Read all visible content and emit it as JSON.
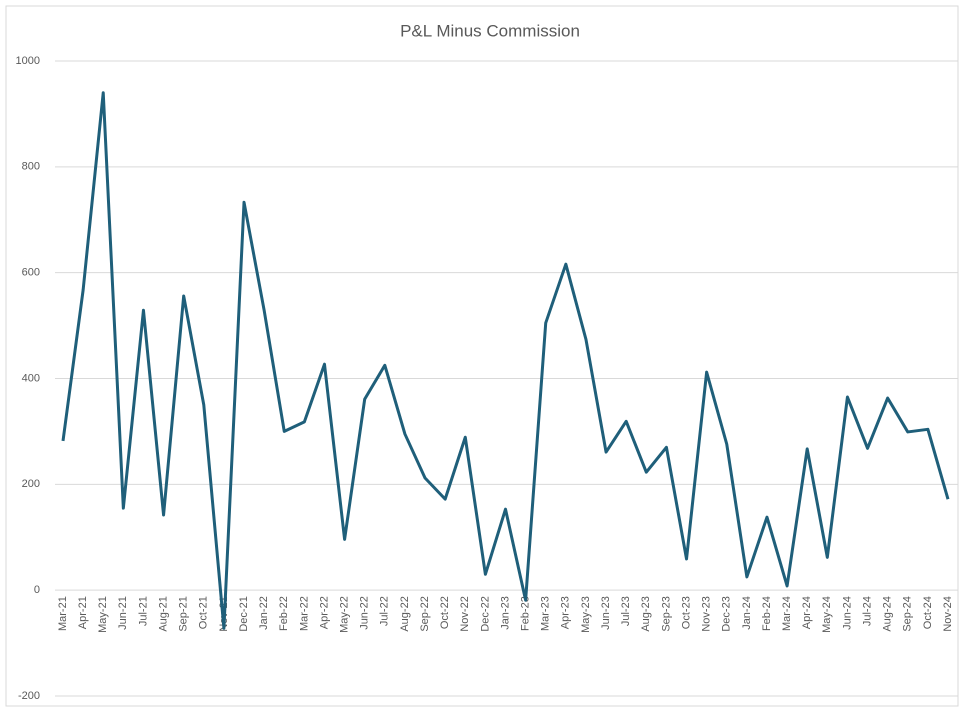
{
  "chart_data": {
    "type": "line",
    "title": "P&L Minus Commission",
    "categories": [
      "Mar-21",
      "Apr-21",
      "May-21",
      "Jun-21",
      "Jul-21",
      "Aug-21",
      "Sep-21",
      "Oct-21",
      "Nov-21",
      "Dec-21",
      "Jan-22",
      "Feb-22",
      "Mar-22",
      "Apr-22",
      "May-22",
      "Jun-22",
      "Jul-22",
      "Aug-22",
      "Sep-22",
      "Oct-22",
      "Nov-22",
      "Dec-22",
      "Jan-23",
      "Feb-23",
      "Mar-23",
      "Apr-23",
      "May-23",
      "Jun-23",
      "Jul-23",
      "Aug-23",
      "Sep-23",
      "Oct-23",
      "Nov-23",
      "Dec-23",
      "Jan-24",
      "Feb-24",
      "Mar-24",
      "Apr-24",
      "May-24",
      "Jun-24",
      "Jul-24",
      "Aug-24",
      "Sep-24",
      "Oct-24",
      "Nov-24"
    ],
    "values": [
      282,
      567,
      940,
      155,
      529,
      142,
      556,
      350,
      -72,
      733,
      529,
      300,
      318,
      427,
      96,
      361,
      425,
      295,
      212,
      172,
      289,
      30,
      153,
      -19,
      505,
      616,
      474,
      261,
      319,
      223,
      270,
      59,
      412,
      276,
      25,
      138,
      8,
      267,
      62,
      365,
      268,
      363,
      299,
      304,
      172
    ],
    "color": "#1f5f7a",
    "ylim": [
      -200,
      1000
    ],
    "yticks": [
      -200,
      0,
      200,
      400,
      600,
      800,
      1000
    ],
    "grid": true
  }
}
